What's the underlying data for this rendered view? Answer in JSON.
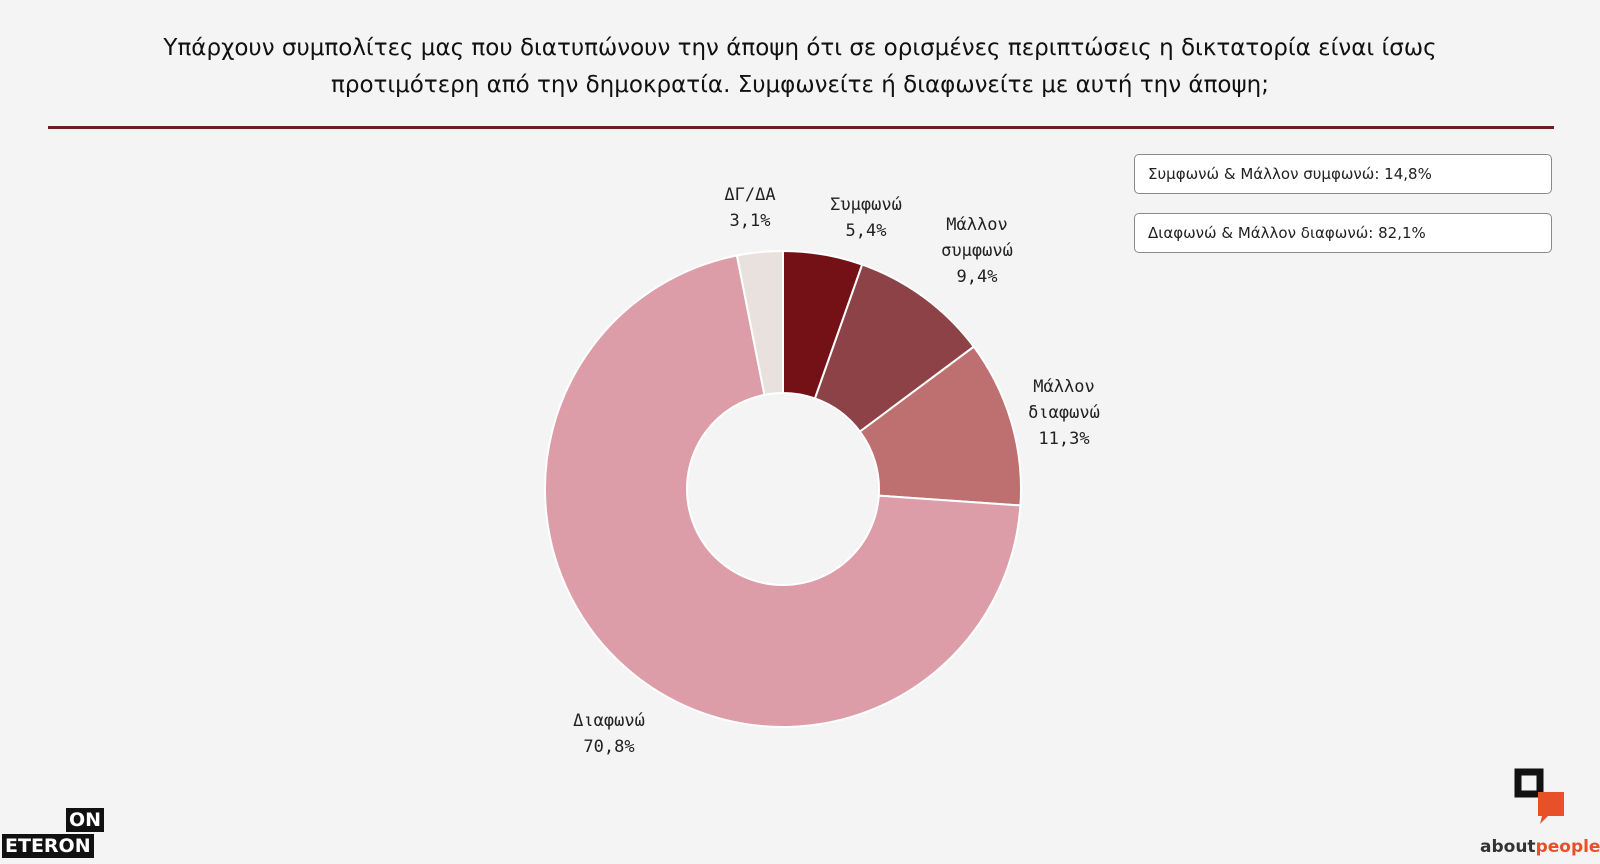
{
  "title": {
    "line1": "Υπάρχουν συμπολίτες μας που διατυπώνουν την άποψη ότι σε ορισμένες περιπτώσεις η δικτατορία είναι ίσως",
    "line2": "προτιμότερη από την δημοκρατία. Συμφωνείτε ή διαφωνείτε με αυτή την άποψη;"
  },
  "summary": {
    "agree_total": "Συμφωνώ & Μάλλον συμφωνώ: 14,8%",
    "disagree_total": "Διαφωνώ & Μάλλον διαφωνώ: 82,1%"
  },
  "chart_data": {
    "type": "pie",
    "donut": true,
    "slices": [
      {
        "label": [
          "Συμφωνώ"
        ],
        "value": 5.4,
        "value_label": "5,4%",
        "color": "#741117"
      },
      {
        "label": [
          "Μάλλον",
          "συμφωνώ"
        ],
        "value": 9.4,
        "value_label": "9,4%",
        "color": "#8c4246"
      },
      {
        "label": [
          "Μάλλον",
          "διαφωνώ"
        ],
        "value": 11.3,
        "value_label": "11,3%",
        "color": "#be7070"
      },
      {
        "label": [
          "Διαφωνώ"
        ],
        "value": 70.8,
        "value_label": "70,8%",
        "color": "#dd9da8"
      },
      {
        "label": [
          "ΔΓ/ΔΑ"
        ],
        "value": 3.1,
        "value_label": "3,1%",
        "color": "#e8e1dd"
      }
    ]
  },
  "logos": {
    "left_top": "ON",
    "left_bottom": "ETERON",
    "right_part1": "about",
    "right_part2": "people",
    "right_mark_colors": [
      "#111111",
      "#e8502a"
    ]
  }
}
